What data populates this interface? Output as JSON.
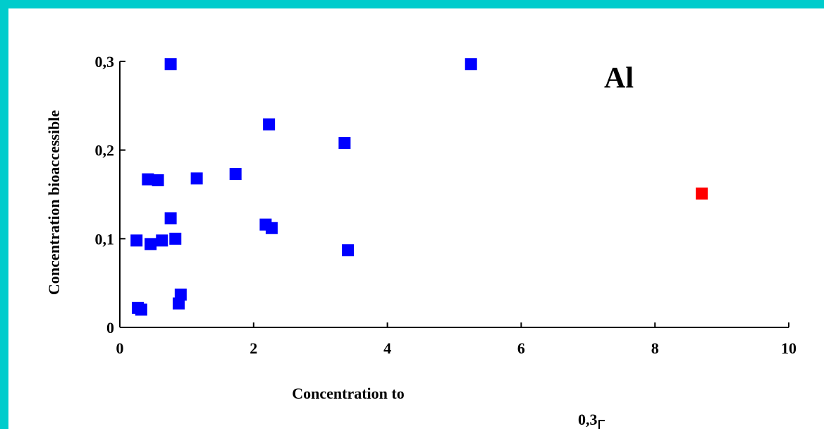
{
  "chart_data": {
    "type": "scatter",
    "title": "",
    "xlabel": "Concentration to",
    "ylabel": "Concentration bioaccessible",
    "annotation": "Al",
    "xlim": [
      0,
      10
    ],
    "ylim": [
      0,
      0.3
    ],
    "x_ticks": [
      {
        "value": 0,
        "label": "0"
      },
      {
        "value": 2,
        "label": "2"
      },
      {
        "value": 4,
        "label": "4"
      },
      {
        "value": 6,
        "label": "6"
      },
      {
        "value": 8,
        "label": "8"
      },
      {
        "value": 10,
        "label": "10"
      }
    ],
    "y_ticks": [
      {
        "value": 0,
        "label": "0"
      },
      {
        "value": 0.1,
        "label": "0,1"
      },
      {
        "value": 0.2,
        "label": "0,2"
      },
      {
        "value": 0.3,
        "label": "0,3"
      }
    ],
    "grid": false,
    "series": [
      {
        "color": "#0000FF",
        "points": [
          {
            "x": 0.76,
            "y": 0.297
          },
          {
            "x": 5.25,
            "y": 0.297
          },
          {
            "x": 2.23,
            "y": 0.229
          },
          {
            "x": 3.36,
            "y": 0.208
          },
          {
            "x": 0.42,
            "y": 0.167
          },
          {
            "x": 0.57,
            "y": 0.166
          },
          {
            "x": 1.15,
            "y": 0.168
          },
          {
            "x": 1.73,
            "y": 0.173
          },
          {
            "x": 0.76,
            "y": 0.123
          },
          {
            "x": 2.18,
            "y": 0.116
          },
          {
            "x": 2.27,
            "y": 0.112
          },
          {
            "x": 0.25,
            "y": 0.098
          },
          {
            "x": 0.46,
            "y": 0.094
          },
          {
            "x": 0.63,
            "y": 0.098
          },
          {
            "x": 0.83,
            "y": 0.1
          },
          {
            "x": 3.41,
            "y": 0.087
          },
          {
            "x": 0.91,
            "y": 0.037
          },
          {
            "x": 0.88,
            "y": 0.027
          },
          {
            "x": 0.27,
            "y": 0.022
          },
          {
            "x": 0.32,
            "y": 0.02
          }
        ]
      },
      {
        "color": "#FF0000",
        "points": [
          {
            "x": 8.7,
            "y": 0.151
          }
        ]
      }
    ]
  },
  "partial_second_chart": {
    "tick_label": "0,3"
  },
  "colors": {
    "background": "#00CCCC",
    "panel": "#FFFFFF",
    "axis": "#000000"
  }
}
